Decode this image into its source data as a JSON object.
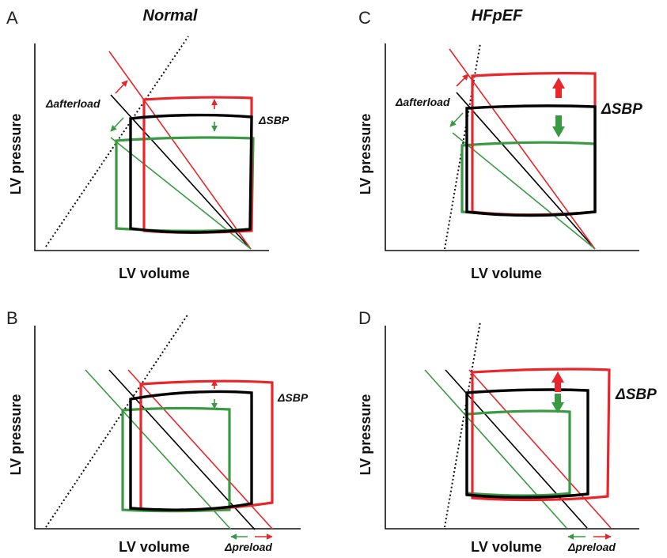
{
  "figure": {
    "columns": {
      "left_title": "Normal",
      "right_title": "HFpEF"
    },
    "colors": {
      "baseline": "#000000",
      "increase": "#e8262b",
      "decrease": "#3a9a43"
    },
    "panels": [
      {
        "letter": "A",
        "ylabel": "LV pressure",
        "xlabel": "LV volume",
        "annotation": "Δafterload",
        "sbp_label": "ΔSBP"
      },
      {
        "letter": "B",
        "ylabel": "LV pressure",
        "xlabel": "LV volume",
        "annotation": "Δpreload",
        "sbp_label": "ΔSBP"
      },
      {
        "letter": "C",
        "ylabel": "LV pressure",
        "xlabel": "LV volume",
        "annotation": "Δafterload",
        "sbp_label": "ΔSBP"
      },
      {
        "letter": "D",
        "ylabel": "LV pressure",
        "xlabel": "LV volume",
        "annotation": "Δpreload",
        "sbp_label": "ΔSBP"
      }
    ]
  }
}
